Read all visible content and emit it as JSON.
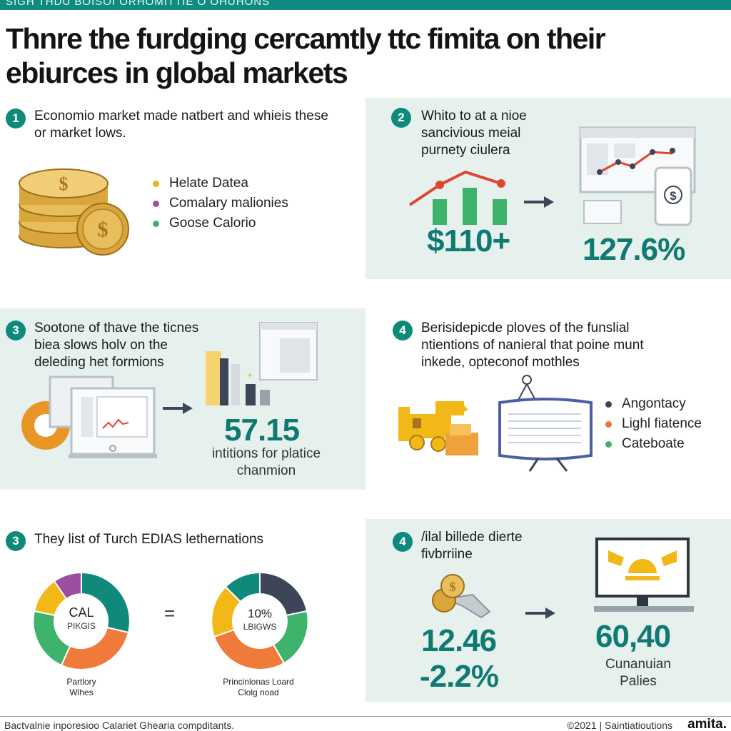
{
  "header": {
    "banner_text": "SIGH THDU BOISOI ORHOMITTIE O OHUHONS",
    "title": "Thnre the furdging cercamtly ttc fimita on their ebiurces in global markets"
  },
  "colors": {
    "accent_teal": "#0f8a7a",
    "panel_bg": "#e6f1ee",
    "gold": "#e8b321",
    "purple": "#9b4f9e",
    "green": "#3db36b",
    "orange": "#e8743b",
    "red": "#e1452e",
    "navy": "#3c4658"
  },
  "panels": [
    {
      "number": "1",
      "text": "Economio market made natbert and whieis these or market lows.",
      "icon": "coins-icon",
      "legend": [
        {
          "label": "Helate Datea",
          "color": "#e8b321"
        },
        {
          "label": "Comalary malionies",
          "color": "#9b4f9e"
        },
        {
          "label": "Goose Calorio",
          "color": "#3db36b"
        }
      ]
    },
    {
      "number": "2",
      "text": "Whito to at a nioe sancivious meial purnety ciulera",
      "icon": "line-chart-icon",
      "value_left": "$110+",
      "value_right": "127.6%"
    },
    {
      "number": "3",
      "text": "Sootone of thave the ticnes biea slows holv on the deleding het formions",
      "icon": "dashboard-icon",
      "value": "57.15",
      "caption": "intitions for platice chanmion"
    },
    {
      "number": "4",
      "text": "Berisidepicde ploves of the funslial ntientions of nanieral that poine munt inkede, opteconof mothles",
      "icon": "forklift-icon",
      "legend": [
        {
          "label": "Angontacy",
          "color": "#3c4658"
        },
        {
          "label": "Lighl fiatence",
          "color": "#e8743b"
        },
        {
          "label": "Cateboate",
          "color": "#3db36b"
        }
      ]
    },
    {
      "number": "3",
      "text": "They list of Turch EDIAS lethernations",
      "donut_left": {
        "center_title": "CAL",
        "center_sub": "PIKGIS",
        "caption": "Partlory Wlhes"
      },
      "equals": "=",
      "donut_right": {
        "center_title": "10%",
        "center_sub": "LBIGWS",
        "caption": "Princinlonas Loard Clolg noad"
      }
    },
    {
      "number": "4",
      "text": "/ilal billede dierte fivbrriine",
      "icon": "monitor-icon",
      "value_left_1": "12.46",
      "value_left_2": "-2.2%",
      "value_right": "60,40",
      "caption_right": "Cunanuian Palies"
    }
  ],
  "footer": {
    "left": "Bactvalnie inporesioo Calariet Ghearia compditants.",
    "right": "©2021 | Saintiatioutions",
    "brand": "amita."
  }
}
